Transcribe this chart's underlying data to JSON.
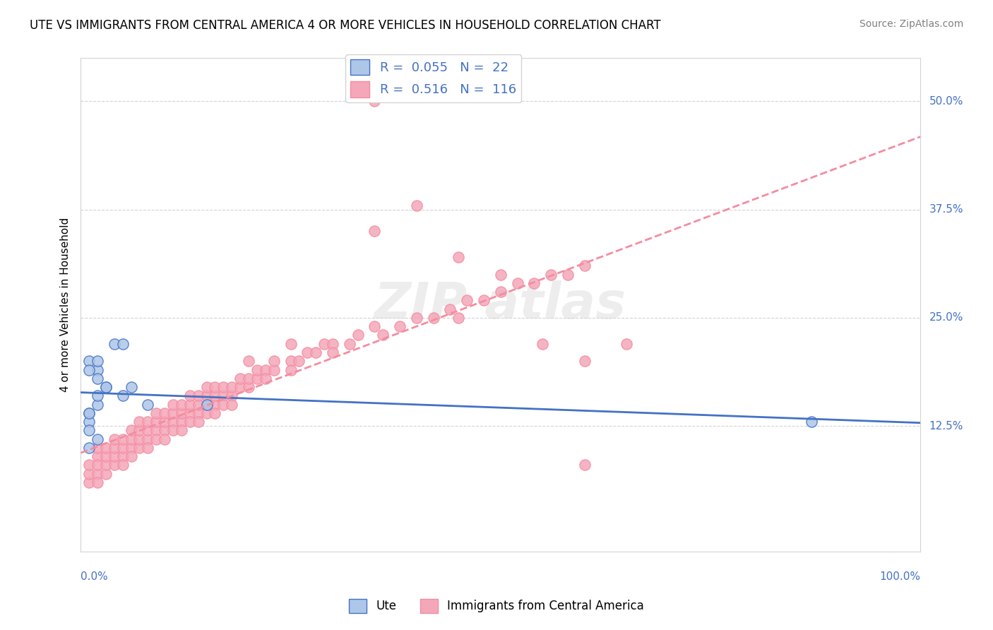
{
  "title": "UTE VS IMMIGRANTS FROM CENTRAL AMERICA 4 OR MORE VEHICLES IN HOUSEHOLD CORRELATION CHART",
  "source": "Source: ZipAtlas.com",
  "ylabel": "4 or more Vehicles in Household",
  "right_yticks": [
    "50.0%",
    "37.5%",
    "25.0%",
    "12.5%"
  ],
  "right_ytick_vals": [
    0.5,
    0.375,
    0.25,
    0.125
  ],
  "legend_ute_R": "0.055",
  "legend_ute_N": "22",
  "legend_immigrants_R": "0.516",
  "legend_immigrants_N": "116",
  "ute_color": "#aec6e8",
  "immigrants_color": "#f4a7b9",
  "ute_line_color": "#4472c4",
  "immigrants_line_color": "#f48ca0",
  "ute_points": [
    [
      0.02,
      0.19
    ],
    [
      0.03,
      0.17
    ],
    [
      0.06,
      0.17
    ],
    [
      0.01,
      0.2
    ],
    [
      0.02,
      0.18
    ],
    [
      0.02,
      0.15
    ],
    [
      0.04,
      0.22
    ],
    [
      0.01,
      0.14
    ],
    [
      0.01,
      0.13
    ],
    [
      0.01,
      0.12
    ],
    [
      0.02,
      0.16
    ],
    [
      0.05,
      0.16
    ],
    [
      0.01,
      0.19
    ],
    [
      0.08,
      0.15
    ],
    [
      0.02,
      0.11
    ],
    [
      0.01,
      0.1
    ],
    [
      0.03,
      0.17
    ],
    [
      0.15,
      0.15
    ],
    [
      0.02,
      0.2
    ],
    [
      0.01,
      0.14
    ],
    [
      0.87,
      0.13
    ],
    [
      0.05,
      0.22
    ]
  ],
  "immigrants_points": [
    [
      0.01,
      0.06
    ],
    [
      0.01,
      0.07
    ],
    [
      0.01,
      0.08
    ],
    [
      0.02,
      0.09
    ],
    [
      0.02,
      0.07
    ],
    [
      0.02,
      0.08
    ],
    [
      0.02,
      0.06
    ],
    [
      0.02,
      0.1
    ],
    [
      0.03,
      0.07
    ],
    [
      0.03,
      0.08
    ],
    [
      0.03,
      0.09
    ],
    [
      0.03,
      0.1
    ],
    [
      0.04,
      0.08
    ],
    [
      0.04,
      0.09
    ],
    [
      0.04,
      0.1
    ],
    [
      0.04,
      0.11
    ],
    [
      0.05,
      0.09
    ],
    [
      0.05,
      0.1
    ],
    [
      0.05,
      0.08
    ],
    [
      0.05,
      0.11
    ],
    [
      0.06,
      0.1
    ],
    [
      0.06,
      0.09
    ],
    [
      0.06,
      0.11
    ],
    [
      0.06,
      0.12
    ],
    [
      0.07,
      0.1
    ],
    [
      0.07,
      0.11
    ],
    [
      0.07,
      0.12
    ],
    [
      0.07,
      0.13
    ],
    [
      0.08,
      0.11
    ],
    [
      0.08,
      0.1
    ],
    [
      0.08,
      0.12
    ],
    [
      0.08,
      0.13
    ],
    [
      0.09,
      0.12
    ],
    [
      0.09,
      0.11
    ],
    [
      0.09,
      0.13
    ],
    [
      0.09,
      0.14
    ],
    [
      0.1,
      0.12
    ],
    [
      0.1,
      0.13
    ],
    [
      0.1,
      0.11
    ],
    [
      0.1,
      0.14
    ],
    [
      0.11,
      0.13
    ],
    [
      0.11,
      0.12
    ],
    [
      0.11,
      0.14
    ],
    [
      0.11,
      0.15
    ],
    [
      0.12,
      0.13
    ],
    [
      0.12,
      0.14
    ],
    [
      0.12,
      0.12
    ],
    [
      0.12,
      0.15
    ],
    [
      0.13,
      0.14
    ],
    [
      0.13,
      0.13
    ],
    [
      0.13,
      0.15
    ],
    [
      0.13,
      0.16
    ],
    [
      0.14,
      0.14
    ],
    [
      0.14,
      0.15
    ],
    [
      0.14,
      0.13
    ],
    [
      0.14,
      0.16
    ],
    [
      0.15,
      0.15
    ],
    [
      0.15,
      0.14
    ],
    [
      0.15,
      0.16
    ],
    [
      0.15,
      0.17
    ],
    [
      0.16,
      0.15
    ],
    [
      0.16,
      0.16
    ],
    [
      0.16,
      0.14
    ],
    [
      0.16,
      0.17
    ],
    [
      0.17,
      0.16
    ],
    [
      0.17,
      0.15
    ],
    [
      0.17,
      0.17
    ],
    [
      0.18,
      0.16
    ],
    [
      0.18,
      0.17
    ],
    [
      0.18,
      0.15
    ],
    [
      0.19,
      0.17
    ],
    [
      0.19,
      0.18
    ],
    [
      0.2,
      0.17
    ],
    [
      0.2,
      0.18
    ],
    [
      0.21,
      0.18
    ],
    [
      0.21,
      0.19
    ],
    [
      0.22,
      0.19
    ],
    [
      0.22,
      0.18
    ],
    [
      0.23,
      0.19
    ],
    [
      0.23,
      0.2
    ],
    [
      0.25,
      0.2
    ],
    [
      0.25,
      0.19
    ],
    [
      0.26,
      0.2
    ],
    [
      0.27,
      0.21
    ],
    [
      0.28,
      0.21
    ],
    [
      0.29,
      0.22
    ],
    [
      0.3,
      0.22
    ],
    [
      0.3,
      0.21
    ],
    [
      0.32,
      0.22
    ],
    [
      0.33,
      0.23
    ],
    [
      0.35,
      0.24
    ],
    [
      0.36,
      0.23
    ],
    [
      0.38,
      0.24
    ],
    [
      0.4,
      0.25
    ],
    [
      0.42,
      0.25
    ],
    [
      0.44,
      0.26
    ],
    [
      0.46,
      0.27
    ],
    [
      0.48,
      0.27
    ],
    [
      0.5,
      0.28
    ],
    [
      0.52,
      0.29
    ],
    [
      0.54,
      0.29
    ],
    [
      0.56,
      0.3
    ],
    [
      0.58,
      0.3
    ],
    [
      0.6,
      0.31
    ],
    [
      0.35,
      0.35
    ],
    [
      0.4,
      0.38
    ],
    [
      0.45,
      0.25
    ],
    [
      0.55,
      0.22
    ],
    [
      0.6,
      0.2
    ],
    [
      0.65,
      0.22
    ],
    [
      0.45,
      0.32
    ],
    [
      0.5,
      0.3
    ],
    [
      0.35,
      0.5
    ],
    [
      0.6,
      0.08
    ],
    [
      0.25,
      0.22
    ],
    [
      0.2,
      0.2
    ]
  ],
  "xlim": [
    0.0,
    1.0
  ],
  "ylim": [
    -0.02,
    0.55
  ],
  "figsize": [
    14.06,
    8.92
  ],
  "dpi": 100
}
